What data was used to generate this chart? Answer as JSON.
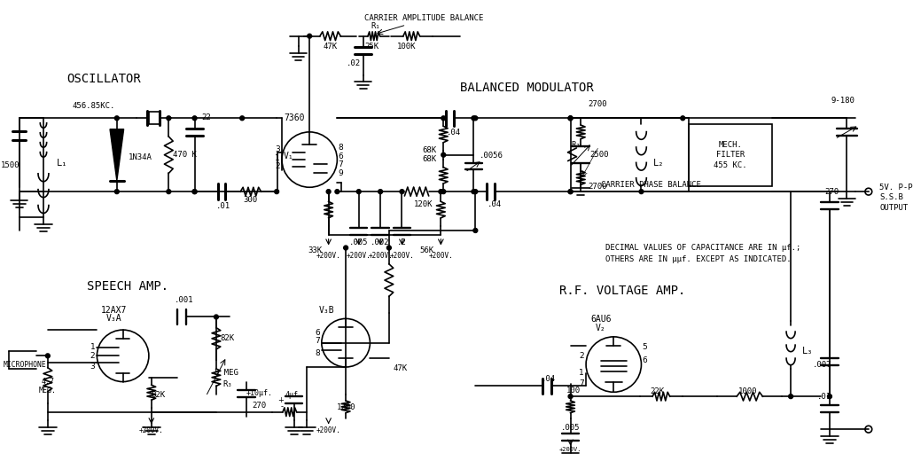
{
  "bg_color": "#ffffff",
  "line_color": "#000000",
  "lw": 1.2,
  "fig_width": 10.3,
  "fig_height": 5.2,
  "labels": {
    "oscillator": "OSCILLATOR",
    "balanced_modulator": "BALANCED MODULATOR",
    "speech_amp": "SPEECH AMP.",
    "rf_amp": "R.F. VOLTAGE AMP.",
    "carrier_amp_bal": "CARRIER AMPLITUDE BALANCE",
    "carrier_phase_bal": "CARRIER PHASE BALANCE",
    "note1": "DECIMAL VALUES OF CAPACITANCE ARE IN μf.;",
    "note2": "OTHERS ARE IN μμf. EXCEPT AS INDICATED.",
    "v1_type": "7360",
    "v1_label": "V₁",
    "v2_type": "6AU6",
    "v2_label": "V₂",
    "v3a_label": "V₃A",
    "v3a_type": "12AX7",
    "v3b_label": "V₃B",
    "mech_filter": [
      "MECH.",
      "FILTER",
      "455 KC."
    ],
    "output": [
      "5V. P-P",
      "S.S.B",
      "OUTPUT"
    ]
  }
}
